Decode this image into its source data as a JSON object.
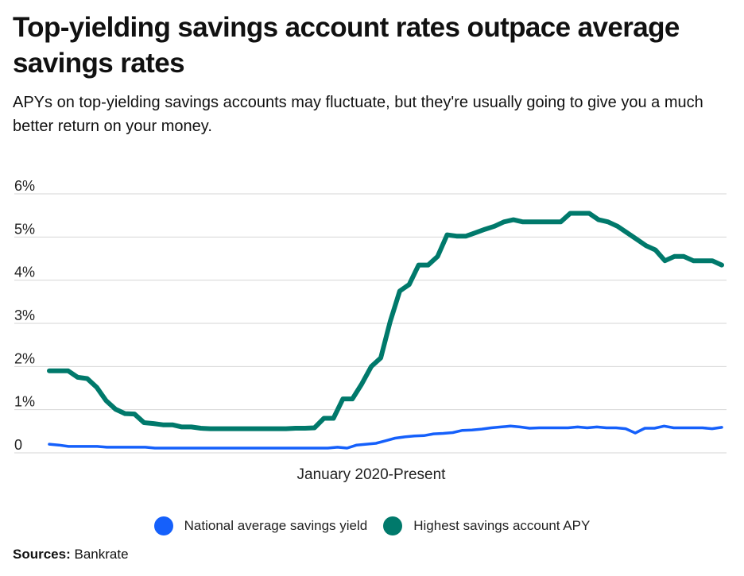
{
  "title": "Top-yielding savings account rates outpace average savings rates",
  "subtitle": "APYs on top-yielding savings accounts may fluctuate, but they're usually going to give you a much better return on your money.",
  "sources": {
    "label": "Sources:",
    "value": "Bankrate"
  },
  "chart_data": {
    "type": "line",
    "title": "Top-yielding savings account rates outpace average savings rates",
    "subtitle": "APYs on top-yielding savings accounts may fluctuate, but they're usually going to give you a much better return on your money.",
    "xlabel": "January 2020-Present",
    "ylabel": "",
    "ylim": [
      0,
      6
    ],
    "y_ticks": [
      "0",
      "1%",
      "2%",
      "3%",
      "4%",
      "5%",
      "6%"
    ],
    "grid": "horizontal",
    "legend_position": "bottom",
    "series": [
      {
        "name": "National average savings yield",
        "color": "#1560fb",
        "values": [
          0.2,
          0.18,
          0.15,
          0.15,
          0.15,
          0.15,
          0.13,
          0.13,
          0.13,
          0.13,
          0.13,
          0.11,
          0.11,
          0.11,
          0.11,
          0.11,
          0.11,
          0.11,
          0.11,
          0.11,
          0.11,
          0.11,
          0.11,
          0.11,
          0.11,
          0.11,
          0.11,
          0.11,
          0.11,
          0.11,
          0.13,
          0.11,
          0.18,
          0.2,
          0.22,
          0.28,
          0.34,
          0.37,
          0.39,
          0.4,
          0.44,
          0.45,
          0.47,
          0.52,
          0.53,
          0.55,
          0.58,
          0.6,
          0.62,
          0.6,
          0.57,
          0.58,
          0.58,
          0.58,
          0.58,
          0.6,
          0.58,
          0.6,
          0.58,
          0.58,
          0.56,
          0.46,
          0.57,
          0.57,
          0.62,
          0.58,
          0.58,
          0.58,
          0.58,
          0.56,
          0.59
        ]
      },
      {
        "name": "Highest savings account APY",
        "color": "#00796b",
        "values": [
          1.9,
          1.9,
          1.9,
          1.75,
          1.72,
          1.52,
          1.21,
          1.01,
          0.91,
          0.9,
          0.7,
          0.68,
          0.65,
          0.65,
          0.6,
          0.6,
          0.57,
          0.56,
          0.56,
          0.56,
          0.56,
          0.56,
          0.56,
          0.56,
          0.56,
          0.56,
          0.57,
          0.57,
          0.58,
          0.8,
          0.8,
          1.25,
          1.25,
          1.6,
          2.0,
          2.2,
          3.05,
          3.75,
          3.9,
          4.35,
          4.35,
          4.55,
          5.05,
          5.02,
          5.02,
          5.1,
          5.18,
          5.25,
          5.35,
          5.4,
          5.35,
          5.35,
          5.35,
          5.35,
          5.35,
          5.55,
          5.55,
          5.55,
          5.4,
          5.35,
          5.25,
          5.1,
          4.95,
          4.8,
          4.7,
          4.45,
          4.55,
          4.55,
          4.45,
          4.45,
          4.45,
          4.35
        ]
      }
    ]
  }
}
